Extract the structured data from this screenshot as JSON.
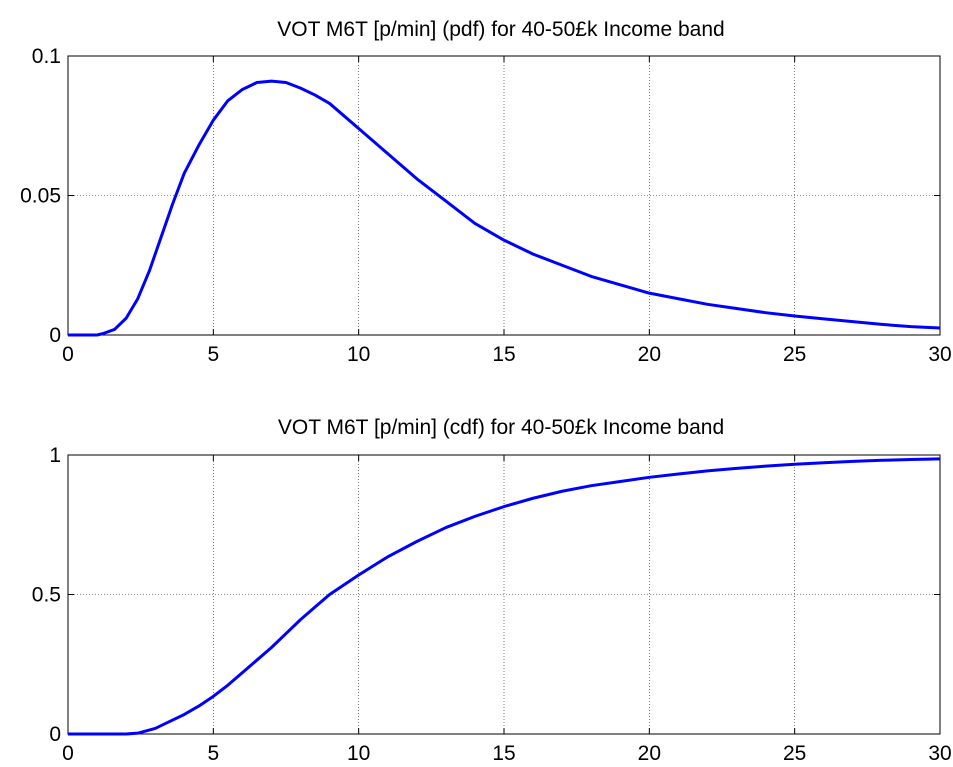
{
  "chart_data": [
    {
      "type": "line",
      "title": "VOT M6T [p/min] (pdf) for 40-50£k Income band",
      "xlabel": "",
      "ylabel": "",
      "xlim": [
        0,
        30
      ],
      "ylim": [
        0,
        0.1
      ],
      "xticks": [
        0,
        5,
        10,
        15,
        20,
        25,
        30
      ],
      "xtick_labels": [
        "0",
        "5",
        "10",
        "15",
        "20",
        "25",
        "30"
      ],
      "yticks": [
        0,
        0.05,
        0.1
      ],
      "ytick_labels": [
        "0",
        "0.05",
        "0.1"
      ],
      "grid": true,
      "color": "#0000ff",
      "series": [
        {
          "x": [
            0,
            1,
            1.2,
            1.6,
            2,
            2.4,
            2.8,
            3.2,
            3.6,
            4,
            4.5,
            5,
            5.5,
            6,
            6.5,
            7,
            7.5,
            8,
            8.5,
            9,
            10,
            11,
            12,
            13,
            14,
            15,
            16,
            17,
            18,
            19,
            20,
            21,
            22,
            23,
            24,
            25,
            26,
            27,
            28,
            29,
            30
          ],
          "y": [
            0,
            0,
            0.0005,
            0.002,
            0.006,
            0.013,
            0.023,
            0.035,
            0.047,
            0.058,
            0.068,
            0.077,
            0.084,
            0.088,
            0.0905,
            0.091,
            0.0905,
            0.0885,
            0.086,
            0.083,
            0.074,
            0.065,
            0.056,
            0.048,
            0.04,
            0.034,
            0.029,
            0.025,
            0.021,
            0.018,
            0.015,
            0.013,
            0.011,
            0.0095,
            0.008,
            0.0068,
            0.0058,
            0.0048,
            0.0038,
            0.003,
            0.0025
          ]
        }
      ]
    },
    {
      "type": "line",
      "title": "VOT M6T [p/min] (cdf) for 40-50£k Income band",
      "xlabel": "",
      "ylabel": "",
      "xlim": [
        0,
        30
      ],
      "ylim": [
        0,
        1
      ],
      "xticks": [
        0,
        5,
        10,
        15,
        20,
        25,
        30
      ],
      "xtick_labels": [
        "0",
        "5",
        "10",
        "15",
        "20",
        "25",
        "30"
      ],
      "yticks": [
        0,
        0.5,
        1
      ],
      "ytick_labels": [
        "0",
        "0.5",
        "1"
      ],
      "grid": true,
      "color": "#0000ff",
      "series": [
        {
          "x": [
            0,
            1,
            2,
            2.4,
            3,
            3.5,
            4,
            4.5,
            5,
            5.5,
            6,
            6.5,
            7,
            7.5,
            8,
            8.5,
            9,
            10,
            11,
            12,
            13,
            14,
            15,
            16,
            17,
            18,
            19,
            20,
            21,
            22,
            23,
            24,
            25,
            26,
            27,
            28,
            29,
            30
          ],
          "y": [
            0,
            0,
            0,
            0.003,
            0.02,
            0.045,
            0.07,
            0.1,
            0.135,
            0.175,
            0.22,
            0.265,
            0.31,
            0.36,
            0.41,
            0.455,
            0.5,
            0.57,
            0.635,
            0.69,
            0.74,
            0.78,
            0.815,
            0.845,
            0.87,
            0.89,
            0.905,
            0.92,
            0.932,
            0.943,
            0.952,
            0.96,
            0.967,
            0.972,
            0.977,
            0.981,
            0.984,
            0.986
          ]
        }
      ]
    }
  ]
}
